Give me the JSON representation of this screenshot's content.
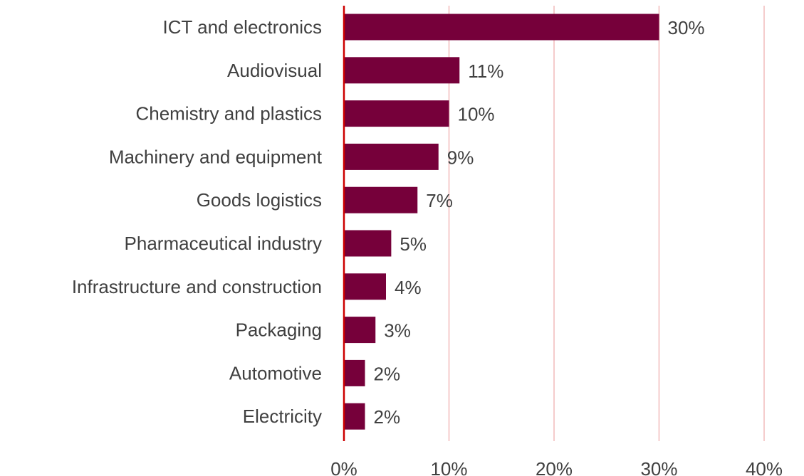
{
  "chart_data": {
    "type": "bar",
    "orientation": "horizontal",
    "title": "",
    "xlabel": "",
    "ylabel": "",
    "categories": [
      "ICT and electronics",
      "Audiovisual",
      "Chemistry and plastics",
      "Machinery and equipment",
      "Goods logistics",
      "Pharmaceutical industry",
      "Infrastructure and construction",
      "Packaging",
      "Automotive",
      "Electricity"
    ],
    "values": [
      30,
      11,
      10,
      9,
      7,
      4.5,
      4,
      3,
      2,
      2
    ],
    "value_labels": [
      "30%",
      "11%",
      "10%",
      "9%",
      "7%",
      "5%",
      "4%",
      "3%",
      "2%",
      "2%"
    ],
    "xlim": [
      0,
      40
    ],
    "xticks": [
      0,
      10,
      20,
      30,
      40
    ],
    "xtick_labels": [
      "0%",
      "10%",
      "20%",
      "30%",
      "40%"
    ],
    "grid": "vertical",
    "legend": "none",
    "colors": {
      "bar": "#76003a",
      "grid": "#f5cccc",
      "axis": "#cc0000",
      "text": "#404040"
    }
  }
}
